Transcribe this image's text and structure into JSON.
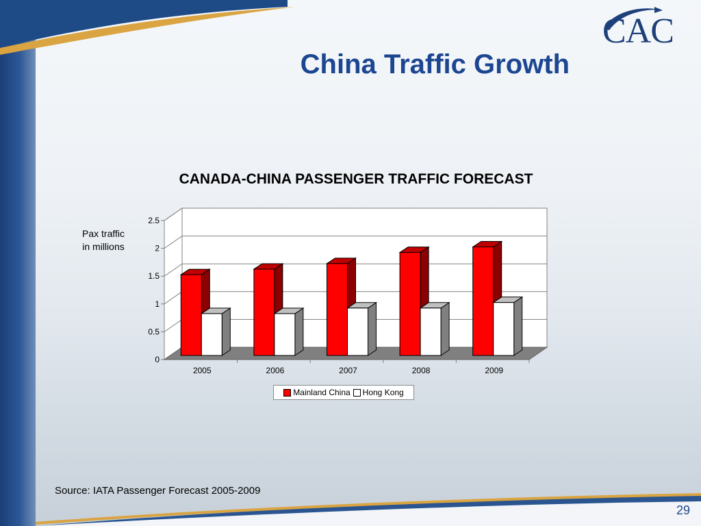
{
  "slide": {
    "title": "China Traffic Growth",
    "source": "Source:  IATA Passenger Forecast 2005-2009",
    "page_number": "29",
    "logo_text": "CAC"
  },
  "colors": {
    "title_blue": "#1c4691",
    "mainland_red": "#ff0000",
    "hongkong_white": "#ffffff"
  },
  "chart_data": {
    "type": "bar",
    "title": "CANADA-CHINA PASSENGER TRAFFIC FORECAST",
    "ylabel_lines": [
      "Pax traffic",
      "in millions"
    ],
    "xlabel": "",
    "categories": [
      "2005",
      "2006",
      "2007",
      "2008",
      "2009"
    ],
    "series": [
      {
        "name": "Mainland China",
        "values": [
          1.6,
          1.7,
          1.8,
          2.0,
          2.1
        ]
      },
      {
        "name": "Hong Kong",
        "values": [
          0.9,
          0.9,
          1.0,
          1.0,
          1.1
        ]
      }
    ],
    "ylim": [
      0,
      2.5
    ],
    "yticks": [
      "0",
      "0.5",
      "1",
      "1.5",
      "2",
      "2.5"
    ],
    "grid": true,
    "legend": "bottom",
    "style": "3d-clustered-column"
  }
}
